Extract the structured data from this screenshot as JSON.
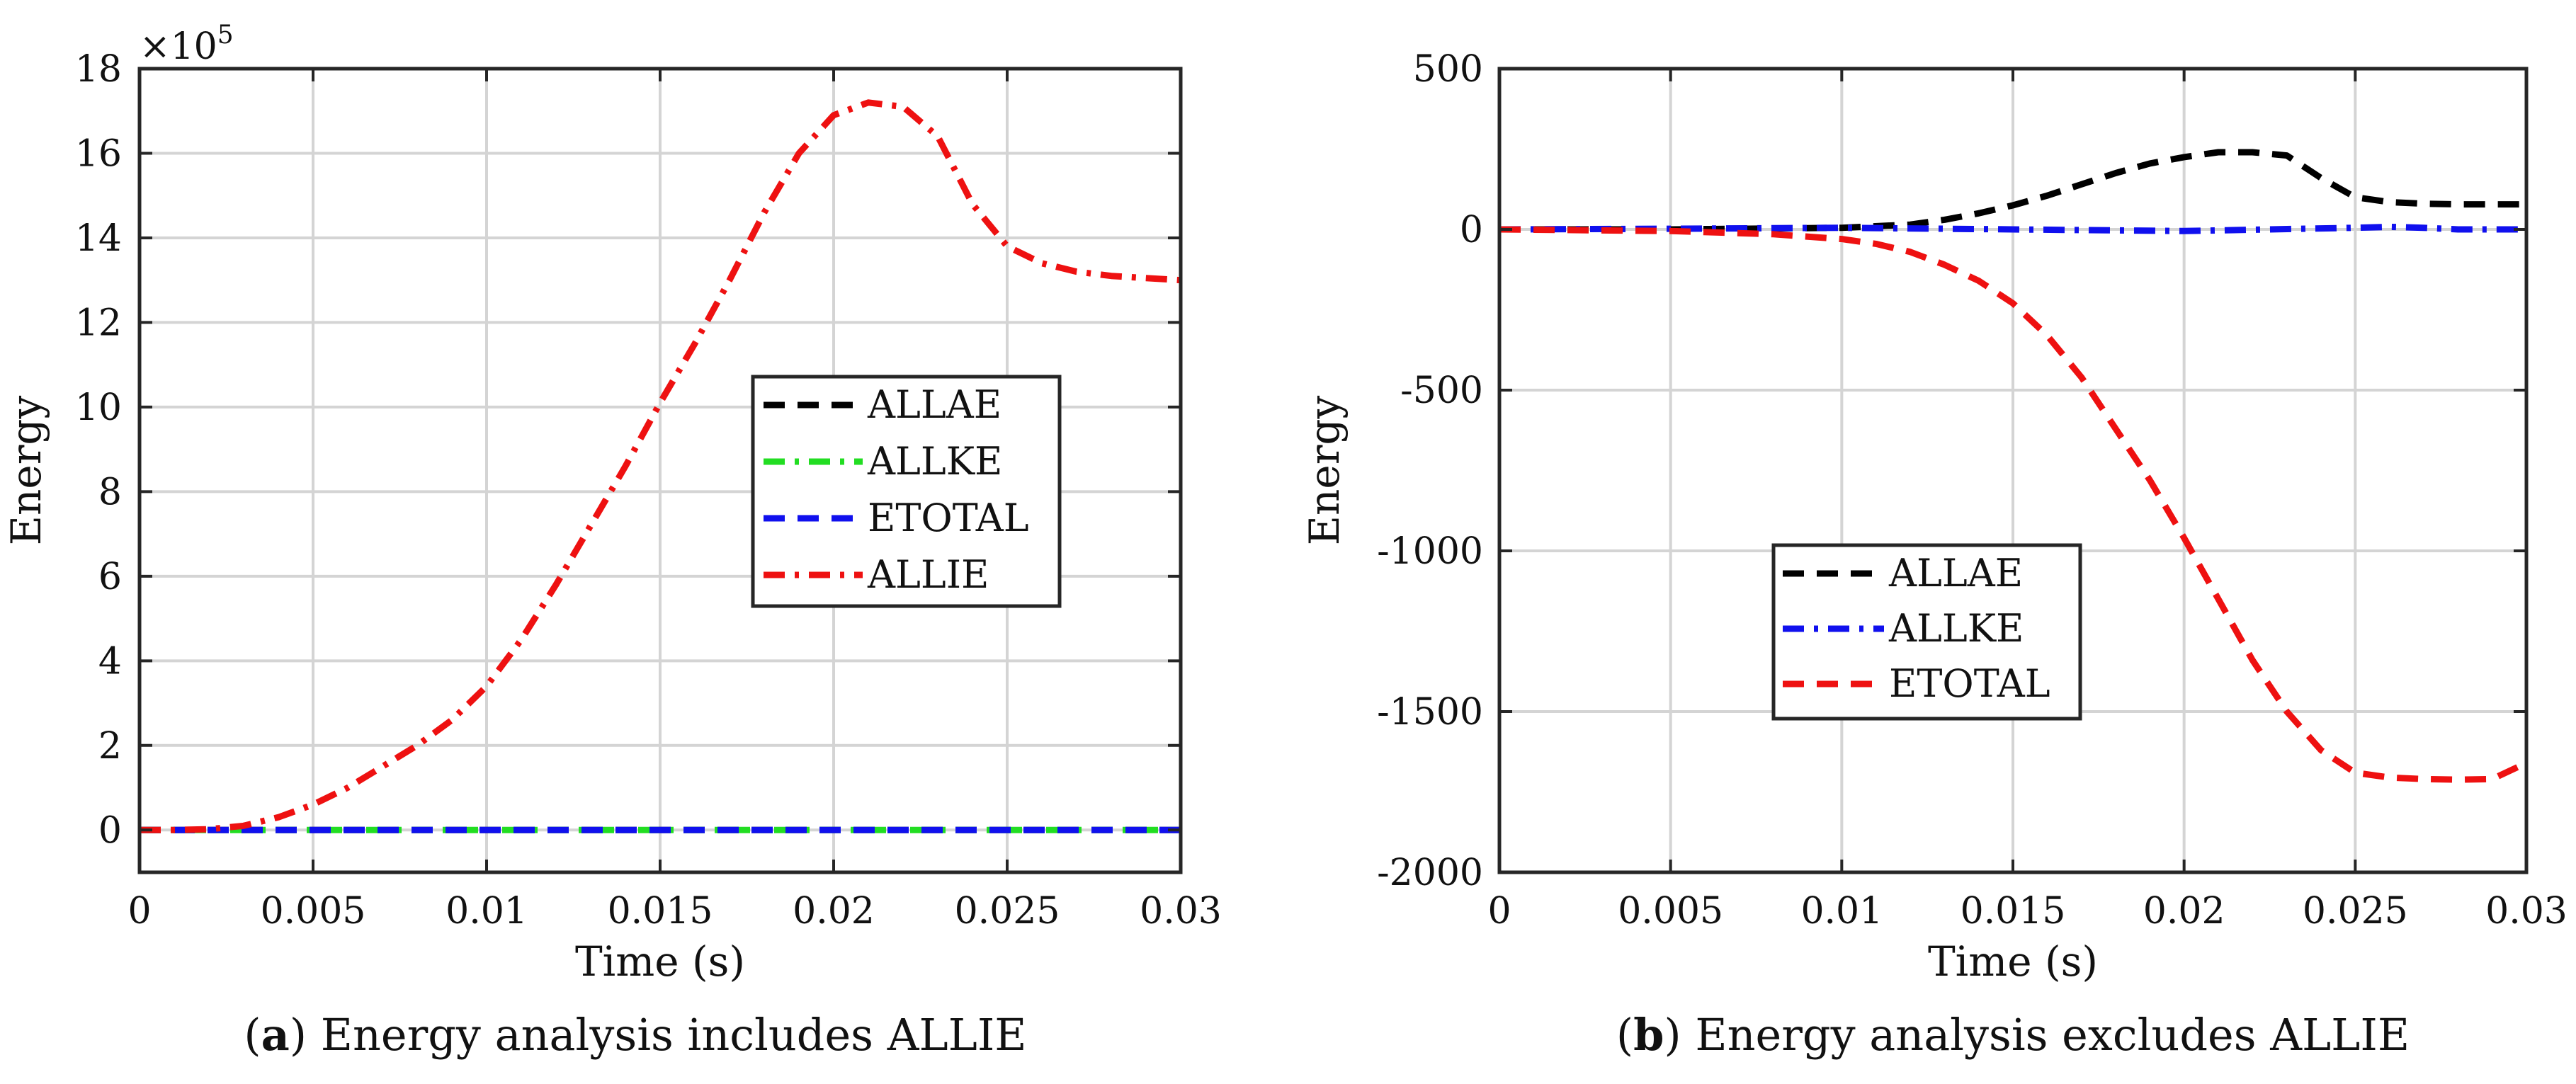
{
  "colors": {
    "black": "#000000",
    "green": "#22dd22",
    "blue": "#1010ee",
    "red": "#ee1111",
    "grid": "#d4d4d4",
    "axis": "#262626"
  },
  "chart_data": [
    {
      "type": "line",
      "xlabel": "Time (s)",
      "ylabel": "Energy",
      "exponent_base": "×10",
      "exponent_power": "5",
      "xlim": [
        0,
        0.03
      ],
      "ylim": [
        -1,
        18
      ],
      "grid": true,
      "legend_position": "center-right",
      "xticks": [
        0,
        0.005,
        0.01,
        0.015,
        0.02,
        0.025,
        0.03
      ],
      "xtick_labels": [
        "0",
        "0.005",
        "0.01",
        "0.015",
        "0.02",
        "0.025",
        "0.03"
      ],
      "yticks": [
        0,
        2,
        4,
        6,
        8,
        10,
        12,
        14,
        16,
        18
      ],
      "ytick_labels": [
        "0",
        "2",
        "4",
        "6",
        "8",
        "10",
        "12",
        "14",
        "16",
        "18"
      ],
      "caption_letter": "a",
      "caption_text": "Energy analysis includes ALLIE",
      "series": [
        {
          "name": "ALLAE",
          "color": "#000000",
          "style": "dash",
          "x": [
            0,
            0.03
          ],
          "y": [
            0,
            0
          ]
        },
        {
          "name": "ALLKE",
          "color": "#22dd22",
          "style": "dashdot",
          "x": [
            0,
            0.03
          ],
          "y": [
            0,
            0
          ]
        },
        {
          "name": "ETOTAL",
          "color": "#1010ee",
          "style": "dash",
          "x": [
            0,
            0.03
          ],
          "y": [
            0,
            0
          ]
        },
        {
          "name": "ALLIE",
          "color": "#ee1111",
          "style": "dashdot",
          "x": [
            0,
            0.001,
            0.002,
            0.003,
            0.004,
            0.005,
            0.006,
            0.007,
            0.008,
            0.009,
            0.01,
            0.011,
            0.012,
            0.013,
            0.014,
            0.015,
            0.016,
            0.017,
            0.018,
            0.019,
            0.02,
            0.021,
            0.022,
            0.023,
            0.024,
            0.025,
            0.026,
            0.027,
            0.028,
            0.029,
            0.03
          ],
          "y": [
            0,
            0,
            0.02,
            0.1,
            0.3,
            0.6,
            1.0,
            1.5,
            2.0,
            2.6,
            3.4,
            4.5,
            5.8,
            7.2,
            8.6,
            10.1,
            11.5,
            13.0,
            14.6,
            16.0,
            16.9,
            17.2,
            17.1,
            16.4,
            14.8,
            13.8,
            13.4,
            13.2,
            13.1,
            13.05,
            13.0
          ]
        }
      ]
    },
    {
      "type": "line",
      "xlabel": "Time (s)",
      "ylabel": "Energy",
      "xlim": [
        0,
        0.03
      ],
      "ylim": [
        -2000,
        500
      ],
      "grid": true,
      "legend_position": "center-left",
      "xticks": [
        0,
        0.005,
        0.01,
        0.015,
        0.02,
        0.025,
        0.03
      ],
      "xtick_labels": [
        "0",
        "0.005",
        "0.01",
        "0.015",
        "0.02",
        "0.025",
        "0.03"
      ],
      "yticks": [
        -2000,
        -1500,
        -1000,
        -500,
        0,
        500
      ],
      "ytick_labels": [
        "-2000",
        "-1500",
        "-1000",
        "-500",
        "0",
        "500"
      ],
      "caption_letter": "b",
      "caption_text": "Energy analysis excludes ALLIE",
      "series": [
        {
          "name": "ALLAE",
          "color": "#000000",
          "style": "dash",
          "x": [
            0,
            0.005,
            0.01,
            0.012,
            0.013,
            0.014,
            0.015,
            0.016,
            0.017,
            0.018,
            0.019,
            0.02,
            0.021,
            0.022,
            0.023,
            0.024,
            0.025,
            0.026,
            0.027,
            0.028,
            0.029,
            0.03
          ],
          "y": [
            0,
            0,
            5,
            15,
            30,
            50,
            75,
            105,
            140,
            175,
            205,
            225,
            240,
            240,
            230,
            160,
            100,
            85,
            80,
            78,
            78,
            78
          ]
        },
        {
          "name": "ALLKE",
          "color": "#1010ee",
          "style": "dashdot",
          "x": [
            0,
            0.005,
            0.01,
            0.015,
            0.02,
            0.025,
            0.026,
            0.027,
            0.028,
            0.029,
            0.03
          ],
          "y": [
            0,
            2,
            5,
            0,
            -5,
            5,
            8,
            5,
            0,
            0,
            0
          ]
        },
        {
          "name": "ETOTAL",
          "color": "#ee1111",
          "style": "dash",
          "x": [
            0,
            0.005,
            0.008,
            0.01,
            0.011,
            0.012,
            0.013,
            0.014,
            0.015,
            0.016,
            0.017,
            0.018,
            0.019,
            0.02,
            0.021,
            0.022,
            0.023,
            0.024,
            0.025,
            0.026,
            0.027,
            0.028,
            0.029,
            0.03
          ],
          "y": [
            0,
            -5,
            -15,
            -30,
            -45,
            -70,
            -110,
            -160,
            -230,
            -330,
            -460,
            -620,
            -780,
            -960,
            -1150,
            -1340,
            -1500,
            -1620,
            -1690,
            -1705,
            -1710,
            -1712,
            -1710,
            -1660
          ]
        }
      ]
    }
  ]
}
